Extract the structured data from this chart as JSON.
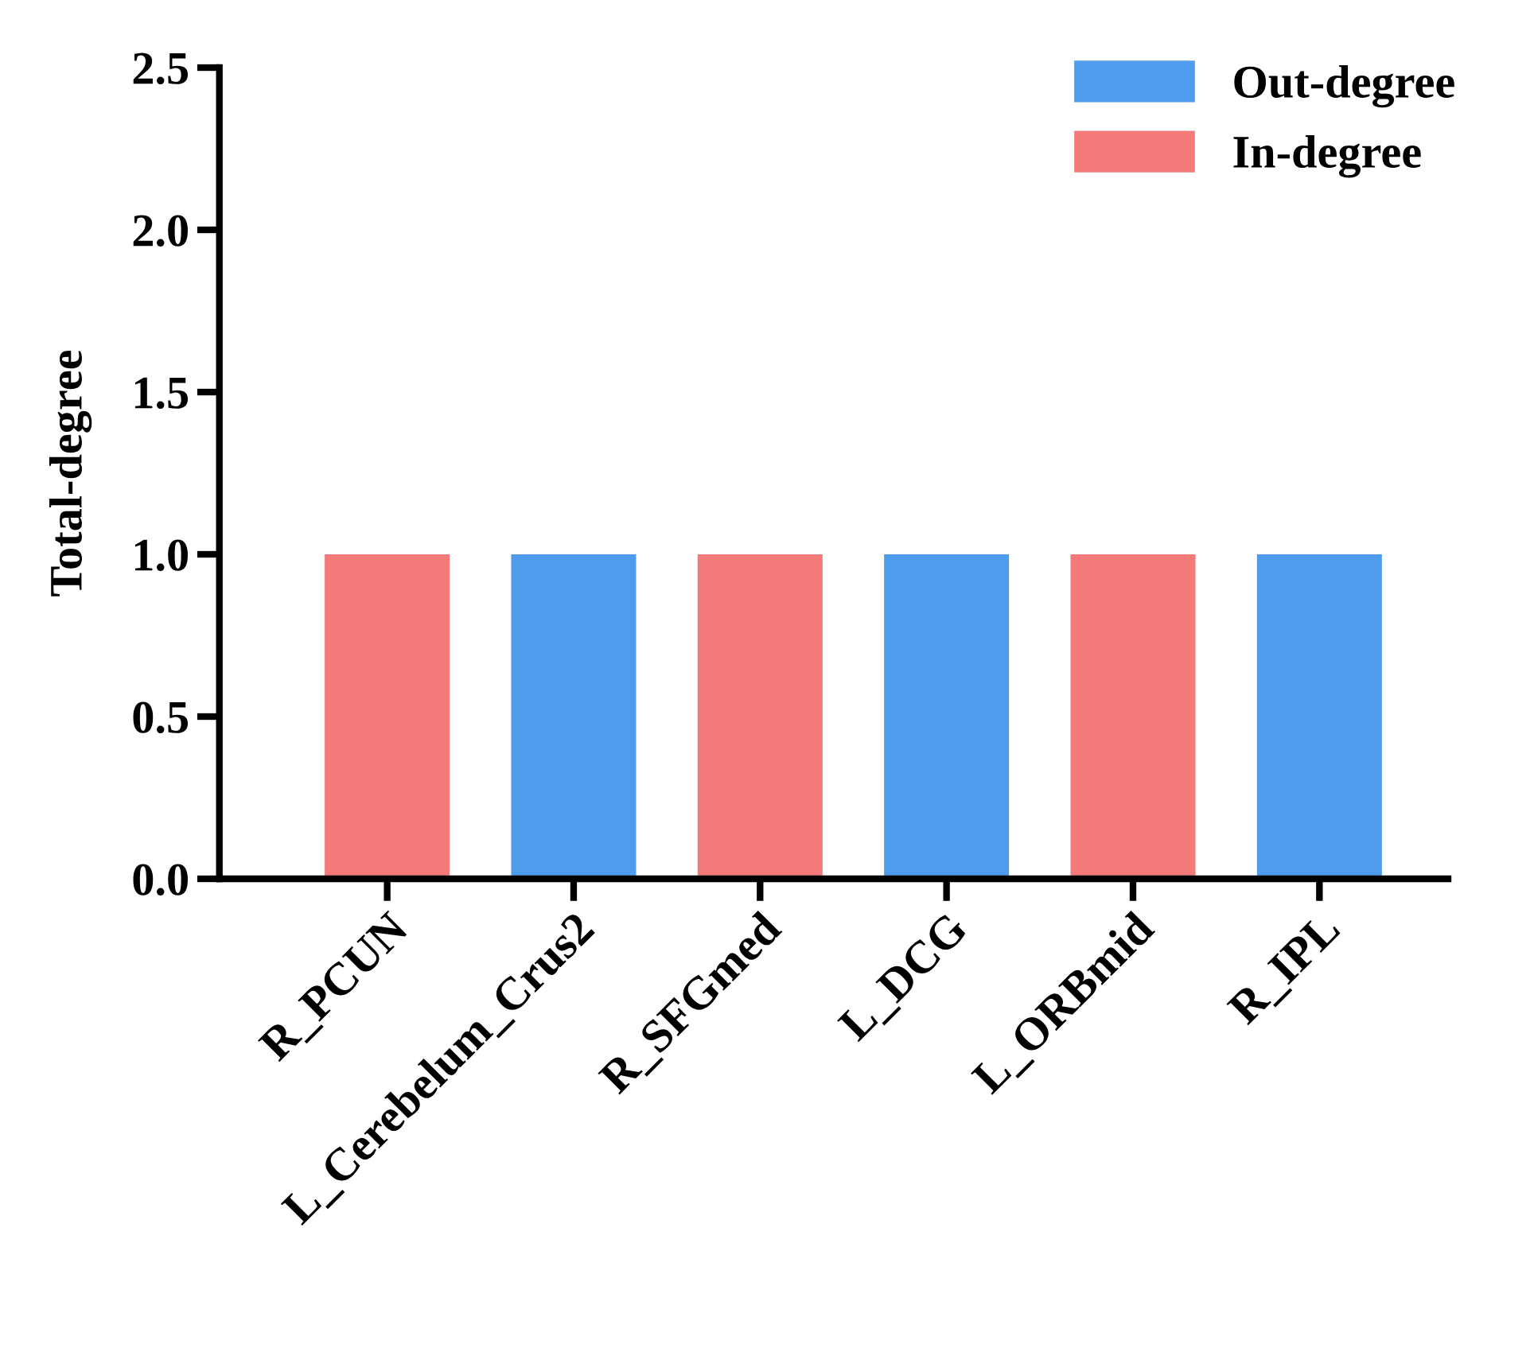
{
  "chart_data": {
    "type": "bar",
    "ylabel": "Total-degree",
    "categories": [
      "R_PCUN",
      "L_Cerebelum_Crus2",
      "R_SFGmed",
      "L_DCG",
      "L_ORBmid",
      "R_IPL"
    ],
    "series": [
      {
        "name": "Out-degree",
        "color": "#4f9bec",
        "values": [
          null,
          1,
          null,
          1,
          null,
          1
        ]
      },
      {
        "name": "In-degree",
        "color": "#f47a7a",
        "values": [
          1,
          null,
          1,
          null,
          1,
          null
        ]
      }
    ],
    "ylim": [
      0,
      2.5
    ],
    "yticks": [
      {
        "value": 0,
        "label": "0.0"
      },
      {
        "value": 0.5,
        "label": "0.5"
      },
      {
        "value": 1,
        "label": "1.0"
      },
      {
        "value": 1.5,
        "label": "1.5"
      },
      {
        "value": 2,
        "label": "2.0"
      },
      {
        "value": 2.5,
        "label": "2.5"
      }
    ],
    "grid": false,
    "legend": "top right"
  }
}
